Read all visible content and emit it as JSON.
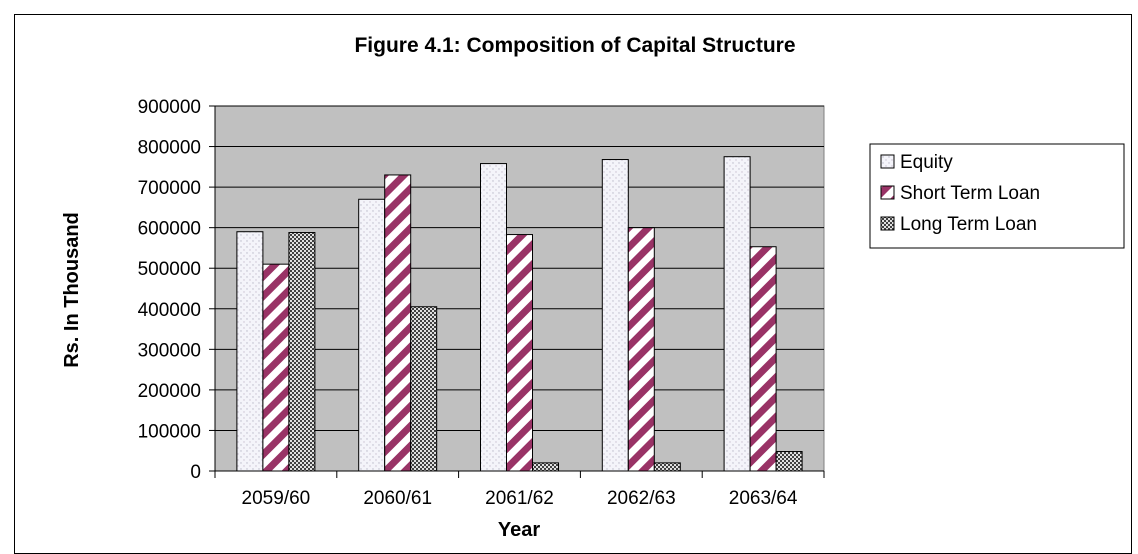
{
  "chart_data": {
    "type": "bar",
    "title": "Figure 4.1: Composition of Capital Structure",
    "xlabel": "Year",
    "ylabel": "Rs. In Thousand",
    "categories": [
      "2059/60",
      "2060/61",
      "2061/62",
      "2062/63",
      "2063/64"
    ],
    "series": [
      {
        "name": "Equity",
        "values": [
          590000,
          670000,
          758000,
          768000,
          775000
        ],
        "color": "#ffffff",
        "pattern": "dots-light"
      },
      {
        "name": "Short Term Loan",
        "values": [
          510000,
          730000,
          583000,
          600000,
          553000
        ],
        "color": "#993366",
        "pattern": "diagonal-stripes"
      },
      {
        "name": "Long Term Loan",
        "values": [
          588000,
          405000,
          20000,
          20000,
          48000
        ],
        "color": "#808080",
        "pattern": "checker-dark"
      }
    ],
    "ylim": [
      0,
      900000
    ],
    "yticks": [
      0,
      100000,
      200000,
      300000,
      400000,
      500000,
      600000,
      700000,
      800000,
      900000
    ],
    "grid": true,
    "plot_background": "#c0c0c0",
    "legend_position": "right"
  }
}
